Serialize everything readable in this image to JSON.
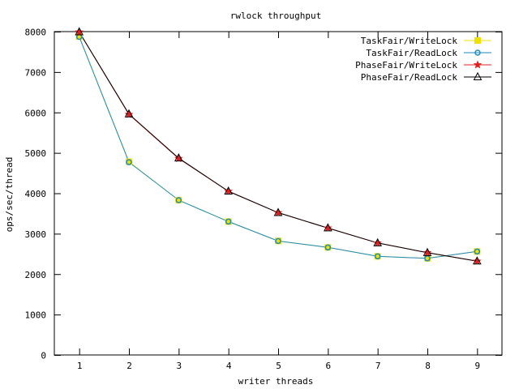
{
  "chart_data": {
    "type": "line",
    "title": "rwlock throughput",
    "xlabel": "writer threads",
    "ylabel": "ops/sec/thread",
    "x": [
      1,
      2,
      3,
      4,
      5,
      6,
      7,
      8,
      9
    ],
    "xlim": [
      0.5,
      9.5
    ],
    "ylim": [
      0,
      8000
    ],
    "xticks": [
      "1",
      "2",
      "3",
      "4",
      "5",
      "6",
      "7",
      "8",
      "9"
    ],
    "yticks": [
      "0",
      "1000",
      "2000",
      "3000",
      "4000",
      "5000",
      "6000",
      "7000",
      "8000"
    ],
    "grid": false,
    "legend_position": "top-right",
    "series": [
      {
        "name": "TaskFair/WriteLock",
        "color": "#f0e000",
        "marker": "square",
        "values": [
          7880,
          4780,
          3830,
          3300,
          2820,
          2660,
          2440,
          2390,
          2560
        ]
      },
      {
        "name": "TaskFair/ReadLock",
        "color": "#1a8abf",
        "marker": "circle",
        "values": [
          7870,
          4770,
          3830,
          3300,
          2820,
          2660,
          2440,
          2390,
          2560
        ]
      },
      {
        "name": "PhaseFair/WriteLock",
        "color": "#e02020",
        "marker": "star",
        "values": [
          7990,
          5950,
          4860,
          4050,
          3520,
          3140,
          2770,
          2530,
          2320
        ]
      },
      {
        "name": "PhaseFair/ReadLock",
        "color": "#000000",
        "marker": "triangle",
        "values": [
          7990,
          5960,
          4870,
          4050,
          3520,
          3140,
          2770,
          2530,
          2320
        ]
      }
    ]
  }
}
